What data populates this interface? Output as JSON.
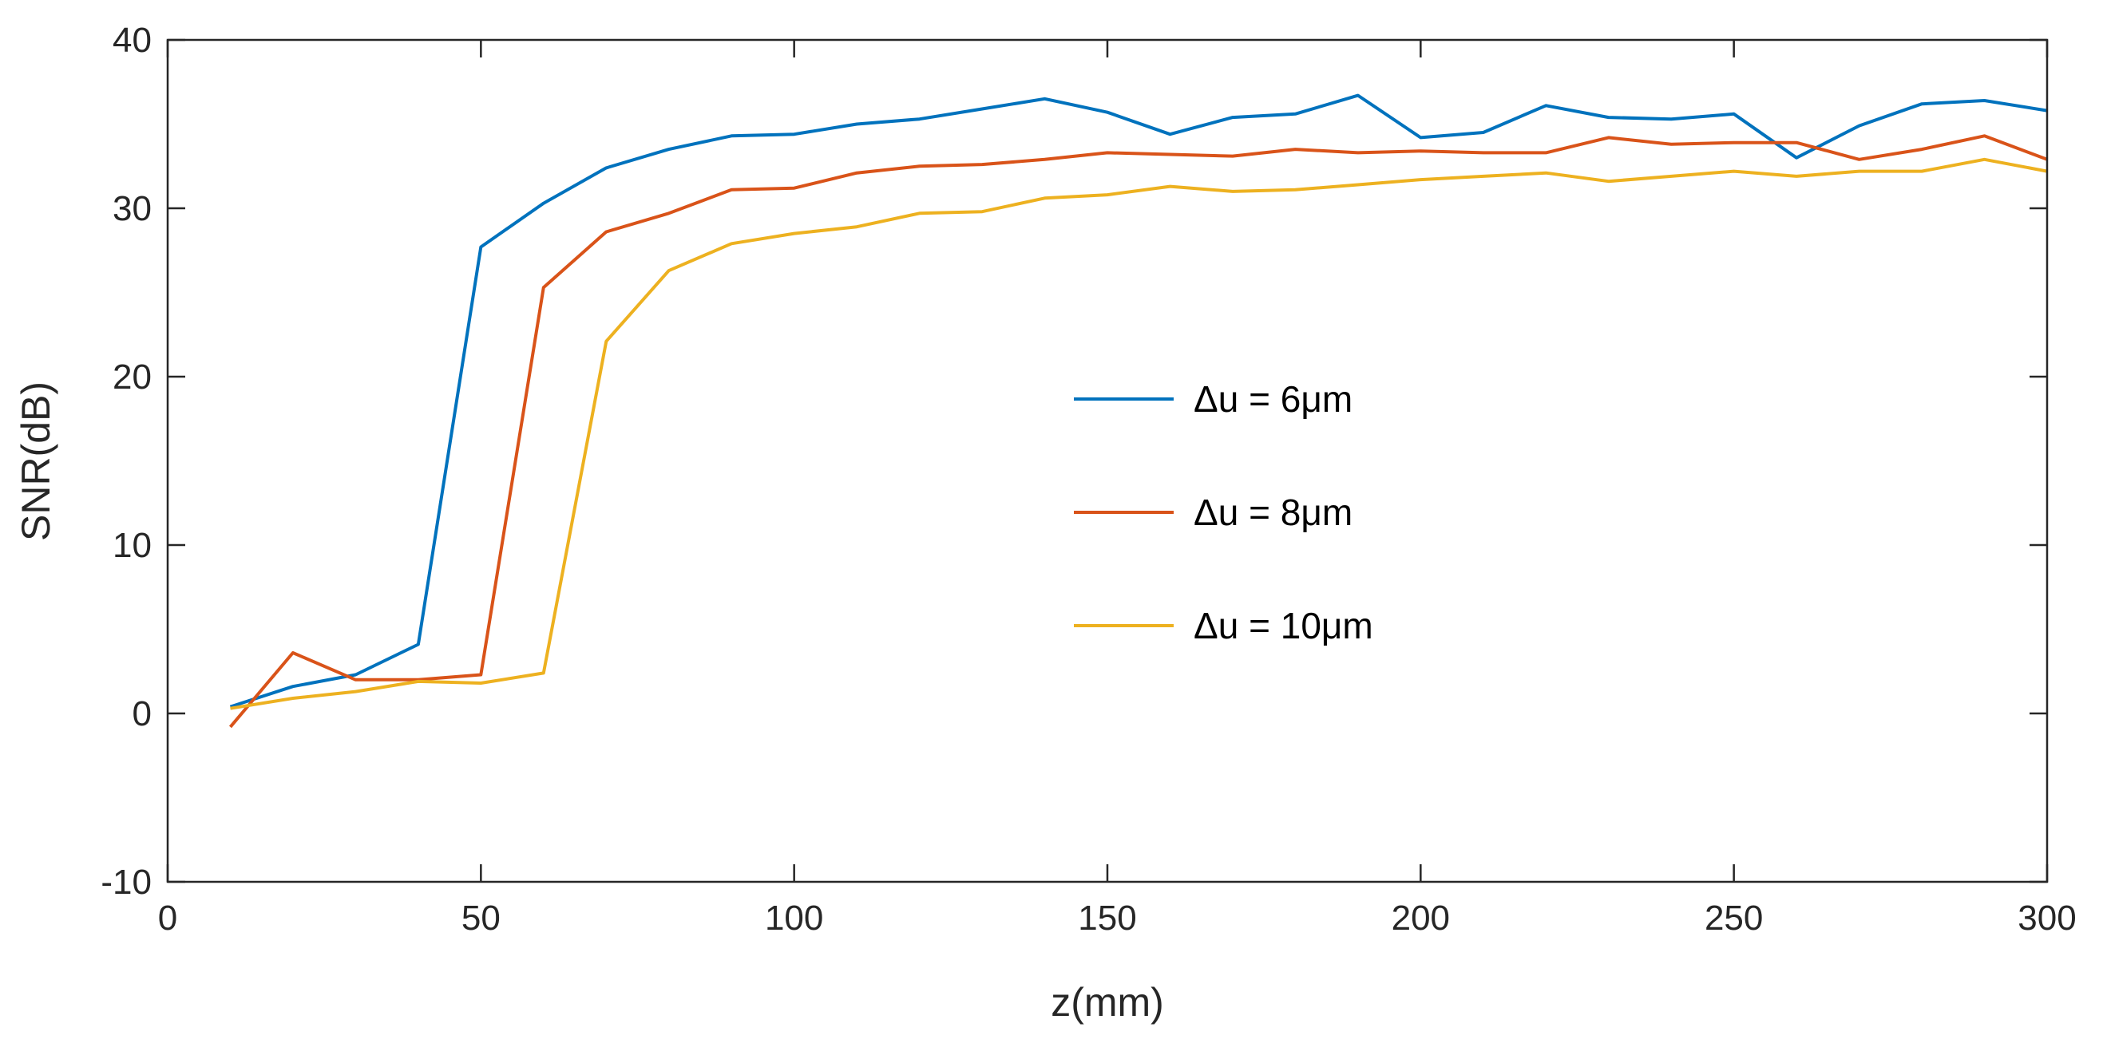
{
  "chart_data": {
    "type": "line",
    "xlabel": "z(mm)",
    "ylabel": "SNR(dB)",
    "xlim": [
      0,
      300
    ],
    "ylim": [
      -10,
      40
    ],
    "xticks": [
      "0",
      "50",
      "100",
      "150",
      "200",
      "250",
      "300"
    ],
    "yticks": [
      "-10",
      "0",
      "10",
      "20",
      "30",
      "40"
    ],
    "grid": false,
    "legend_position": "center-right",
    "x": [
      10,
      20,
      30,
      40,
      50,
      60,
      70,
      80,
      90,
      100,
      110,
      120,
      130,
      140,
      150,
      160,
      170,
      180,
      190,
      200,
      210,
      220,
      230,
      240,
      250,
      260,
      270,
      280,
      290,
      300
    ],
    "series": [
      {
        "name": "Δu = 6μm",
        "color": "#0072BD",
        "values": [
          0.4,
          1.6,
          2.3,
          4.1,
          27.7,
          30.3,
          32.4,
          33.5,
          34.3,
          34.4,
          35.0,
          35.3,
          35.9,
          36.5,
          35.7,
          34.4,
          35.4,
          35.6,
          36.7,
          34.2,
          34.5,
          36.1,
          35.4,
          35.3,
          35.6,
          33.0,
          34.9,
          36.2,
          36.4,
          35.8
        ]
      },
      {
        "name": "Δu = 8μm",
        "color": "#D95319",
        "values": [
          -0.8,
          3.6,
          2.0,
          2.0,
          2.3,
          25.3,
          28.6,
          29.7,
          31.1,
          31.2,
          32.1,
          32.5,
          32.6,
          32.9,
          33.3,
          33.2,
          33.1,
          33.5,
          33.3,
          33.4,
          33.3,
          33.3,
          34.2,
          33.8,
          33.9,
          33.9,
          32.9,
          33.5,
          34.3,
          32.9
        ]
      },
      {
        "name": "Δu = 10μm",
        "color": "#EDB120",
        "values": [
          0.3,
          0.9,
          1.3,
          1.9,
          1.8,
          2.4,
          22.1,
          26.3,
          27.9,
          28.5,
          28.9,
          29.7,
          29.8,
          30.6,
          30.8,
          31.3,
          31.0,
          31.1,
          31.4,
          31.7,
          31.9,
          32.1,
          31.6,
          31.9,
          32.2,
          31.9,
          32.2,
          32.2,
          32.9,
          32.2
        ]
      }
    ]
  }
}
